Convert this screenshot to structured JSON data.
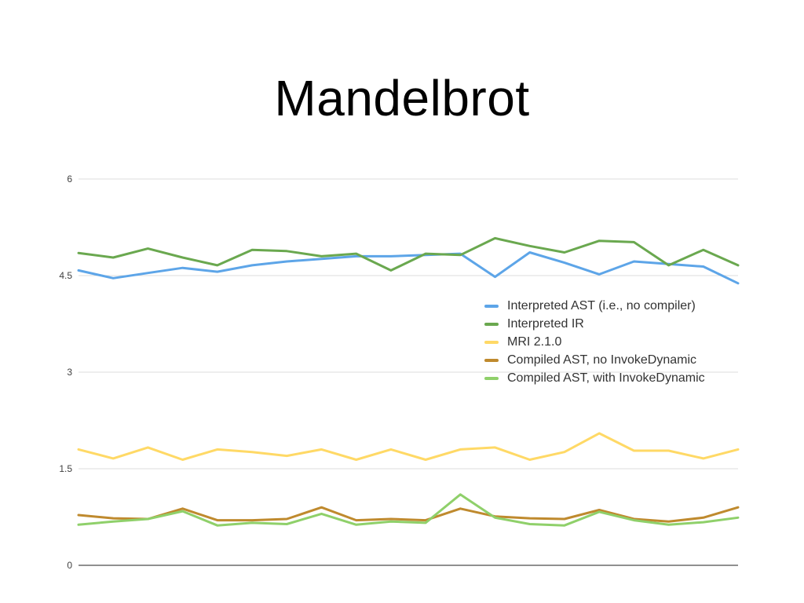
{
  "title": "Mandelbrot",
  "chart_data": {
    "type": "line",
    "title": "Mandelbrot",
    "xlabel": "",
    "ylabel": "",
    "ylim": [
      0,
      6
    ],
    "yticks": [
      0,
      1.5,
      3,
      4.5,
      6
    ],
    "ytick_labels": [
      "0",
      "1.5",
      "3",
      "4.5",
      "6"
    ],
    "grid": true,
    "legend_position": "center-right",
    "x": [
      1,
      2,
      3,
      4,
      5,
      6,
      7,
      8,
      9,
      10,
      11,
      12,
      13,
      14,
      15,
      16,
      17,
      18,
      19,
      20
    ],
    "series": [
      {
        "name": "Interpreted AST (i.e., no compiler)",
        "color": "#5da5e8",
        "values": [
          4.58,
          4.46,
          4.54,
          4.62,
          4.56,
          4.66,
          4.72,
          4.76,
          4.8,
          4.8,
          4.82,
          4.84,
          4.48,
          4.86,
          4.7,
          4.52,
          4.72,
          4.68,
          4.64,
          4.38
        ]
      },
      {
        "name": "Interpreted IR",
        "color": "#6aa84f",
        "values": [
          4.85,
          4.78,
          4.92,
          4.78,
          4.66,
          4.9,
          4.88,
          4.8,
          4.84,
          4.58,
          4.84,
          4.82,
          5.08,
          4.96,
          4.86,
          5.04,
          5.02,
          4.66,
          4.9,
          4.66
        ]
      },
      {
        "name": "MRI 2.1.0",
        "color": "#ffd966",
        "values": [
          1.8,
          1.66,
          1.83,
          1.64,
          1.8,
          1.76,
          1.7,
          1.8,
          1.64,
          1.8,
          1.64,
          1.8,
          1.83,
          1.64,
          1.76,
          2.05,
          1.78,
          1.78,
          1.66,
          1.8
        ]
      },
      {
        "name": "Compiled AST, no InvokeDynamic",
        "color": "#bf8a2e",
        "values": [
          0.78,
          0.73,
          0.72,
          0.88,
          0.7,
          0.7,
          0.72,
          0.9,
          0.7,
          0.72,
          0.7,
          0.88,
          0.76,
          0.73,
          0.72,
          0.86,
          0.72,
          0.68,
          0.74,
          0.9
        ]
      },
      {
        "name": "Compiled AST, with InvokeDynamic",
        "color": "#8fd06a",
        "values": [
          0.63,
          0.68,
          0.72,
          0.84,
          0.62,
          0.66,
          0.64,
          0.8,
          0.63,
          0.68,
          0.66,
          1.1,
          0.74,
          0.64,
          0.62,
          0.83,
          0.7,
          0.63,
          0.67,
          0.74
        ]
      }
    ]
  },
  "style": {
    "gridline_color": "#dcdcdc",
    "baseline_color": "#222222",
    "tick_label_color": "#404040",
    "legend_text_color": "#333333",
    "background": "#ffffff"
  }
}
